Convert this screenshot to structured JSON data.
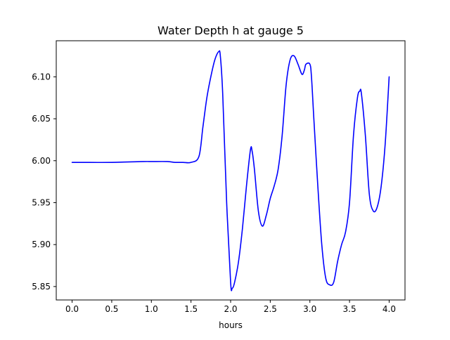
{
  "chart_data": {
    "type": "line",
    "title": "Water Depth h at gauge 5",
    "xlabel": "hours",
    "ylabel": "",
    "xlim": [
      -0.2,
      4.2
    ],
    "ylim": [
      5.834,
      6.143
    ],
    "xticks": [
      0.0,
      0.5,
      1.0,
      1.5,
      2.0,
      2.5,
      3.0,
      3.5,
      4.0
    ],
    "xtick_labels": [
      "0.0",
      "0.5",
      "1.0",
      "1.5",
      "2.0",
      "2.5",
      "3.0",
      "3.5",
      "4.0"
    ],
    "yticks": [
      5.85,
      5.9,
      5.95,
      6.0,
      6.05,
      6.1
    ],
    "ytick_labels": [
      "5.85",
      "5.90",
      "5.95",
      "6.00",
      "6.05",
      "6.10"
    ],
    "grid": false,
    "series": [
      {
        "color": "#0000ff",
        "x": [
          0.0,
          0.5,
          0.9,
          1.0,
          1.2,
          1.3,
          1.4,
          1.5,
          1.6,
          1.65,
          1.7,
          1.75,
          1.8,
          1.85,
          1.87,
          1.9,
          1.95,
          2.0,
          2.02,
          2.05,
          2.1,
          2.15,
          2.2,
          2.25,
          2.27,
          2.3,
          2.35,
          2.4,
          2.45,
          2.5,
          2.55,
          2.6,
          2.65,
          2.7,
          2.75,
          2.8,
          2.85,
          2.9,
          2.93,
          2.95,
          3.0,
          3.02,
          3.05,
          3.1,
          3.15,
          3.2,
          3.25,
          3.3,
          3.35,
          3.4,
          3.45,
          3.5,
          3.55,
          3.6,
          3.63,
          3.65,
          3.7,
          3.75,
          3.8,
          3.85,
          3.9,
          3.95,
          4.0
        ],
        "y": [
          5.998,
          5.998,
          5.999,
          5.999,
          5.999,
          5.998,
          5.998,
          5.998,
          6.005,
          6.04,
          6.075,
          6.1,
          6.12,
          6.13,
          6.125,
          6.08,
          5.95,
          5.855,
          5.848,
          5.855,
          5.88,
          5.92,
          5.97,
          6.013,
          6.012,
          5.99,
          5.94,
          5.922,
          5.935,
          5.955,
          5.97,
          5.99,
          6.03,
          6.09,
          6.12,
          6.125,
          6.115,
          6.103,
          6.108,
          6.115,
          6.115,
          6.1,
          6.05,
          5.97,
          5.9,
          5.86,
          5.852,
          5.855,
          5.88,
          5.9,
          5.915,
          5.95,
          6.03,
          6.075,
          6.083,
          6.08,
          6.03,
          5.96,
          5.94,
          5.945,
          5.97,
          6.02,
          6.1
        ]
      }
    ]
  }
}
